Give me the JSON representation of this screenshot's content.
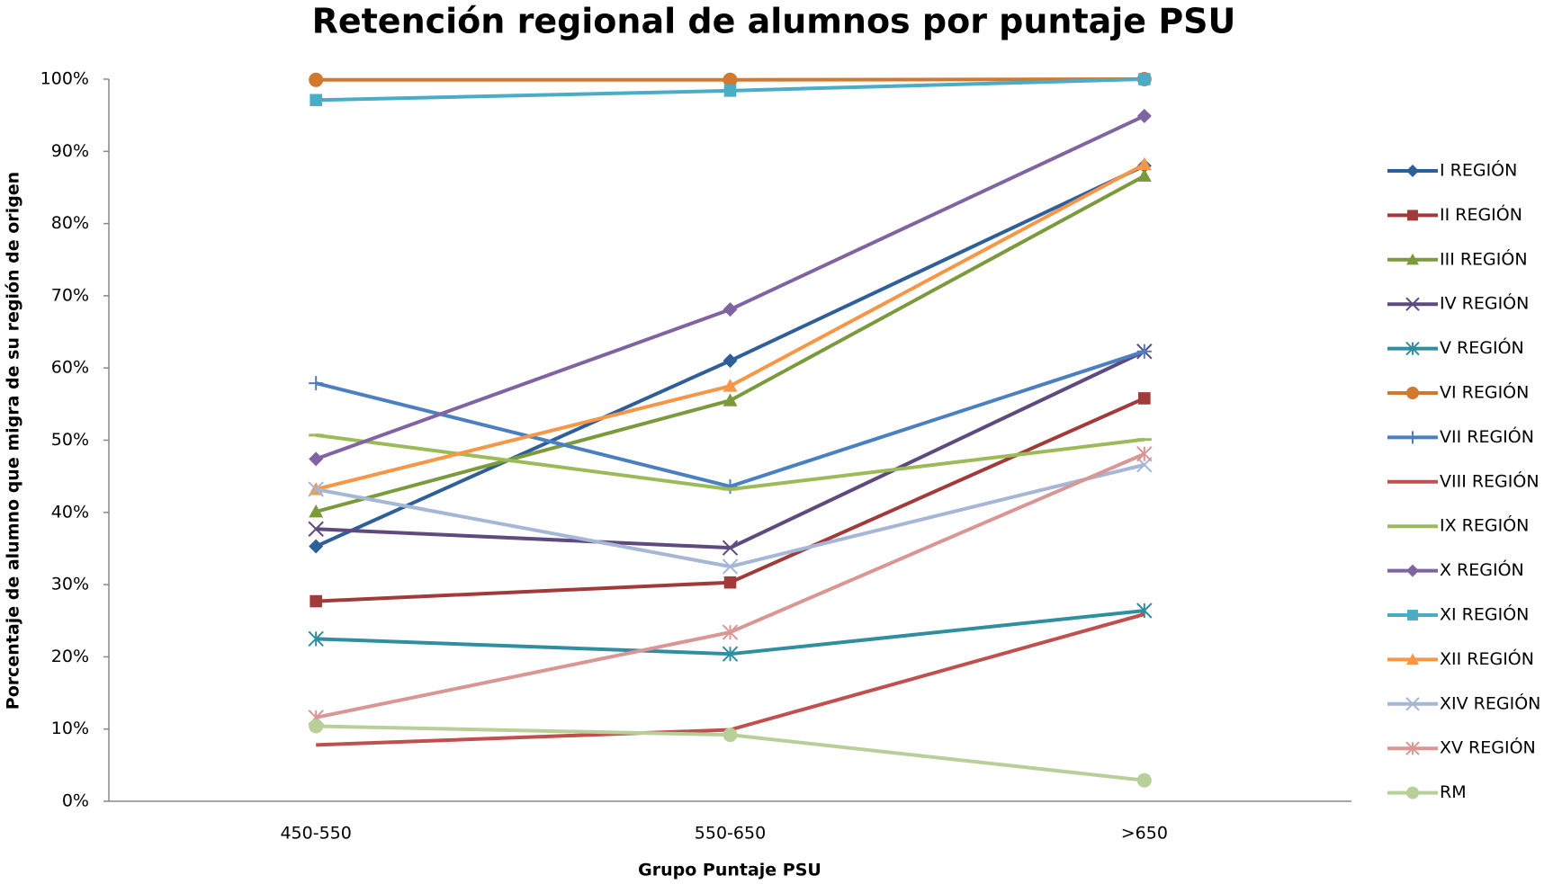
{
  "chart_data": {
    "type": "line",
    "title": "Retención regional de alumnos por puntaje PSU",
    "x_label": "Grupo Puntaje PSU",
    "y_label": "Porcentaje de alumno que migra de su región de origen",
    "categories": [
      "450-550",
      "550-650",
      ">650"
    ],
    "ylim": [
      0,
      100
    ],
    "yticks": [
      {
        "value": 0,
        "label": "0%"
      },
      {
        "value": 10,
        "label": "10%"
      },
      {
        "value": 20,
        "label": "20%"
      },
      {
        "value": 30,
        "label": "30%"
      },
      {
        "value": 40,
        "label": "40%"
      },
      {
        "value": 50,
        "label": "50%"
      },
      {
        "value": 60,
        "label": "60%"
      },
      {
        "value": 70,
        "label": "70%"
      },
      {
        "value": 80,
        "label": "80%"
      },
      {
        "value": 90,
        "label": "90%"
      },
      {
        "value": 100,
        "label": "100%"
      }
    ],
    "grid": false,
    "legend": "right",
    "series": [
      {
        "name": "I REGIÓN",
        "color": "#2f5f98",
        "marker": "diamond",
        "values": [
          35.3,
          61,
          88
        ]
      },
      {
        "name": "II REGIÓN",
        "color": "#a03b3a",
        "marker": "square",
        "values": [
          27.7,
          30.3,
          55.8
        ]
      },
      {
        "name": "III REGIÓN",
        "color": "#7a9a3c",
        "marker": "triangle",
        "values": [
          40.1,
          55.5,
          86.6
        ]
      },
      {
        "name": "IV REGIÓN",
        "color": "#5e4a7e",
        "marker": "x",
        "values": [
          37.7,
          35.1,
          62.3
        ]
      },
      {
        "name": "V REGIÓN",
        "color": "#2f8ea0",
        "marker": "star",
        "values": [
          22.5,
          20.4,
          26.4
        ]
      },
      {
        "name": "VI REGIÓN",
        "color": "#d0792f",
        "marker": "circle",
        "values": [
          99.9,
          99.9,
          100
        ]
      },
      {
        "name": "VII REGIÓN",
        "color": "#4a7fc1",
        "marker": "plus",
        "values": [
          57.9,
          43.6,
          62.3
        ]
      },
      {
        "name": "VIII REGIÓN",
        "color": "#c0504d",
        "marker": "none",
        "values": [
          7.8,
          9.9,
          25.9
        ]
      },
      {
        "name": "IX REGIÓN",
        "color": "#9bbb59",
        "marker": "dash",
        "values": [
          50.7,
          43.2,
          50.1
        ]
      },
      {
        "name": "X REGIÓN",
        "color": "#8064a2",
        "marker": "diamond",
        "values": [
          47.4,
          68.1,
          94.9
        ]
      },
      {
        "name": "XI REGIÓN",
        "color": "#4bacc6",
        "marker": "square",
        "values": [
          97.1,
          98.4,
          100
        ]
      },
      {
        "name": "XII REGIÓN",
        "color": "#f79646",
        "marker": "triangle",
        "values": [
          43.2,
          57.5,
          88.2
        ]
      },
      {
        "name": "XIV REGIÓN",
        "color": "#a5b6d6",
        "marker": "x",
        "values": [
          43.2,
          32.5,
          46.6
        ]
      },
      {
        "name": "XV REGIÓN",
        "color": "#d99694",
        "marker": "star",
        "values": [
          11.6,
          23.4,
          48.1
        ]
      },
      {
        "name": "RM",
        "color": "#b8cf99",
        "marker": "circle",
        "values": [
          10.4,
          9.2,
          2.9
        ]
      }
    ]
  }
}
